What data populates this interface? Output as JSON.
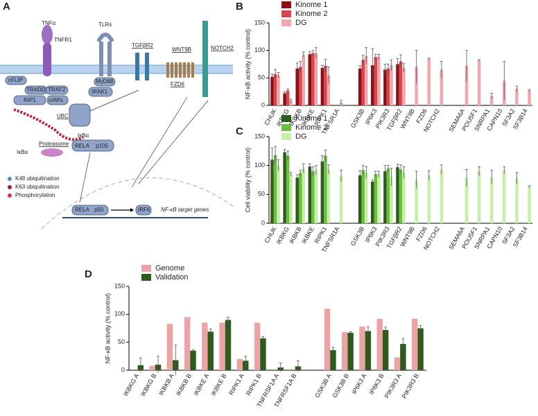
{
  "panels": [
    "A",
    "B",
    "C",
    "D"
  ],
  "diagram": {
    "labels": [
      "TNFα",
      "TNFR1",
      "TLRs",
      "TGFβR2",
      "WNT9B",
      "FZD6",
      "NOTCH2",
      "cFLIP",
      "TRADD",
      "TRAF2",
      "RIP1",
      "cIAPs",
      "MyD88",
      "IRAK1",
      "UBC",
      "Proteasome",
      "IκBα",
      "RELA",
      "p105",
      "IκBα",
      "RELA",
      "p50",
      "IRF6",
      "NF-κB target genes"
    ],
    "legend": [
      "K48 ubiquitination",
      "K63 ubiquitination",
      "Phosphorylation"
    ]
  },
  "chart_data": [
    {
      "type": "bar",
      "y_label": "NF-κB activity (% control)",
      "legend": "top-left",
      "categories": [
        "CHUK",
        "IKBKG",
        "IKBKB",
        "IKBKE",
        "RIPK1",
        "TNFSR1A",
        null,
        "GSK3B",
        "IP6K3",
        "PIK3R3",
        "TGFβR2",
        "WNT9B",
        "FZD6",
        "NOTCH2",
        null,
        "SEMA6A",
        "POU5F1",
        "SNRPA1",
        "CAPN10",
        "SF3A2",
        "SF3B14"
      ],
      "series": [
        {
          "name": "Kinome 1",
          "color": "#8b0e14",
          "values": [
            52,
            22,
            67,
            93,
            68,
            null,
            null,
            67,
            73,
            65,
            75,
            null,
            null,
            null,
            null,
            null,
            null,
            null,
            null,
            null,
            null
          ],
          "errors": [
            5,
            3,
            10,
            5,
            5,
            null,
            null,
            5,
            30,
            10,
            10,
            null,
            null,
            null,
            null,
            null,
            null,
            null,
            null,
            null,
            null
          ]
        },
        {
          "name": "Kinome 2",
          "color": "#d9454d",
          "values": [
            57,
            27,
            70,
            95,
            72,
            null,
            null,
            83,
            88,
            67,
            80,
            null,
            null,
            null,
            null,
            null,
            null,
            null,
            null,
            null,
            null
          ],
          "errors": [
            8,
            3,
            10,
            5,
            12,
            null,
            null,
            8,
            5,
            8,
            12,
            null,
            null,
            null,
            null,
            null,
            null,
            null,
            null,
            null,
            null
          ]
        },
        {
          "name": "DG",
          "color": "#f0a8ad",
          "values": [
            55,
            8,
            92,
            95,
            55,
            5,
            null,
            90,
            88,
            73,
            68,
            70,
            85,
            65,
            null,
            72,
            82,
            17,
            45,
            30,
            27
          ],
          "errors": [
            5,
            3,
            5,
            10,
            15,
            4,
            null,
            15,
            5,
            10,
            8,
            30,
            1,
            15,
            null,
            28,
            1,
            5,
            35,
            5,
            2
          ]
        }
      ],
      "ylim": [
        0,
        150
      ],
      "yticks": [
        0,
        50,
        100,
        150
      ]
    },
    {
      "type": "bar",
      "y_label": "Cell viability (% control)",
      "legend": "top-left",
      "categories": [
        "CHUK",
        "IKBKG",
        "IKBKB",
        "IKBKE",
        "RIPK1",
        "TNFSR1A",
        null,
        "GSK3B",
        "IP6K3",
        "PIK3R3",
        "TGFβR2",
        "WNT9B",
        "FZD6",
        "NOTCH2",
        null,
        "SEMA6A",
        "POU5F1",
        "SNRPA1",
        "CAPN10",
        "SF3A2",
        "SF3B14"
      ],
      "series": [
        {
          "name": "Kinome 1",
          "color": "#2e5a1e",
          "values": [
            110,
            123,
            79,
            98,
            107,
            null,
            null,
            83,
            72,
            90,
            97,
            null,
            null,
            null,
            null,
            null,
            null,
            null,
            null,
            null,
            null
          ],
          "errors": [
            20,
            5,
            5,
            5,
            10,
            null,
            null,
            8,
            3,
            10,
            5,
            null,
            null,
            null,
            null,
            null,
            null,
            null,
            null,
            null,
            null
          ]
        },
        {
          "name": "Kinome 2",
          "color": "#6cbf3c",
          "values": [
            118,
            117,
            87,
            90,
            117,
            null,
            null,
            92,
            85,
            95,
            93,
            null,
            null,
            null,
            null,
            null,
            null,
            null,
            null,
            null,
            null
          ],
          "errors": [
            15,
            8,
            5,
            8,
            10,
            null,
            null,
            8,
            5,
            5,
            8,
            null,
            null,
            null,
            null,
            null,
            null,
            null,
            null,
            null,
            null
          ]
        },
        {
          "name": "DG",
          "color": "#c5f0a8",
          "values": [
            100,
            85,
            95,
            92,
            93,
            82,
            null,
            88,
            85,
            80,
            88,
            75,
            83,
            93,
            null,
            78,
            90,
            80,
            92,
            78,
            63
          ],
          "errors": [
            10,
            3,
            8,
            8,
            8,
            10,
            null,
            10,
            5,
            15,
            10,
            15,
            8,
            8,
            null,
            15,
            8,
            12,
            6,
            10,
            2
          ]
        }
      ],
      "ylim": [
        0,
        150
      ],
      "yticks": [
        0,
        50,
        100,
        150
      ]
    },
    {
      "type": "bar",
      "y_label": "NF-κB activity (% control)",
      "legend": "top-left",
      "categories": [
        "IKBKG A",
        "IKBKG B",
        "IKBKB A",
        "IKBKB B",
        "IKBKE A",
        "IKBKE B",
        "RIPK1 A",
        "RIPK1 B",
        "TNFRSF1A A",
        "TNFRSF1A B",
        null,
        "GSK3B A",
        "GSK3B B",
        "IP6K3 A",
        "IP6K3 B",
        "PIK3R3 A",
        "PIK3R3 B"
      ],
      "series": [
        {
          "name": "Genome",
          "color": "#eba3a3",
          "values": [
            null,
            8,
            83,
            95,
            85,
            85,
            20,
            85,
            null,
            null,
            null,
            110,
            68,
            78,
            92,
            23,
            92
          ],
          "errors": [
            null,
            null,
            null,
            null,
            null,
            null,
            null,
            null,
            null,
            null,
            null,
            null,
            null,
            null,
            null,
            null,
            null
          ]
        },
        {
          "name": "Validation",
          "color": "#2e5a1e",
          "values": [
            9,
            10,
            18,
            35,
            69,
            90,
            17,
            57,
            5,
            7,
            null,
            36,
            67,
            70,
            72,
            47,
            75
          ],
          "errors": [
            13,
            15,
            27,
            2,
            5,
            5,
            8,
            3,
            8,
            10,
            null,
            5,
            2,
            8,
            5,
            10,
            5
          ]
        }
      ],
      "ylim": [
        0,
        150
      ],
      "yticks": [
        0,
        50,
        100,
        150
      ]
    }
  ]
}
